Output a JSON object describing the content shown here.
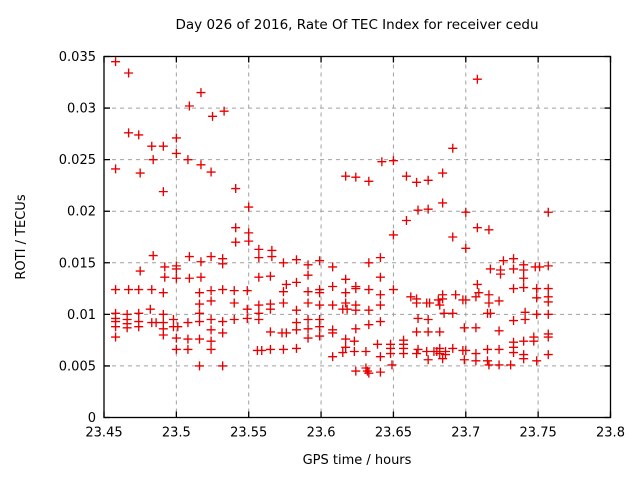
{
  "colors": {
    "marker": "#e80000",
    "grid": "#a0a0a0",
    "axis": "#000000",
    "background": "#ffffff"
  },
  "chart_data": {
    "type": "scatter",
    "title": "Day 026 of 2016, Rate Of TEC Index for receiver cedu",
    "xlabel": "GPS time / hours",
    "ylabel": "ROTI / TECUs",
    "xlim": [
      23.45,
      23.8
    ],
    "ylim": [
      0,
      0.035
    ],
    "xtick_values": [
      23.45,
      23.5,
      23.55,
      23.6,
      23.65,
      23.7,
      23.75,
      23.8
    ],
    "xtick_labels": [
      "23.45",
      "23.5",
      "23.55",
      "23.6",
      "23.65",
      "23.7",
      "23.75",
      "23.8"
    ],
    "ytick_values": [
      0,
      0.005,
      0.01,
      0.015,
      0.02,
      0.025,
      0.03,
      0.035
    ],
    "ytick_labels": [
      "0",
      "0.005",
      "0.01",
      "0.015",
      "0.02",
      "0.025",
      "0.03",
      "0.035"
    ],
    "grid": true,
    "legend": "none",
    "marker": {
      "shape": "plus",
      "color": "#e80000",
      "size": 9
    },
    "series": [
      {
        "name": "ROTI",
        "color": "#e80000",
        "points": [
          [
            23.458,
            0.0345
          ],
          [
            23.467,
            0.0334
          ],
          [
            23.517,
            0.0315
          ],
          [
            23.509,
            0.0302
          ],
          [
            23.525,
            0.0292
          ],
          [
            23.533,
            0.0297
          ],
          [
            23.467,
            0.0276
          ],
          [
            23.474,
            0.0274
          ],
          [
            23.483,
            0.0263
          ],
          [
            23.491,
            0.0263
          ],
          [
            23.5,
            0.0271
          ],
          [
            23.5,
            0.0256
          ],
          [
            23.484,
            0.025
          ],
          [
            23.508,
            0.025
          ],
          [
            23.517,
            0.0245
          ],
          [
            23.642,
            0.0248
          ],
          [
            23.65,
            0.0249
          ],
          [
            23.708,
            0.0328
          ],
          [
            23.691,
            0.0261
          ],
          [
            23.458,
            0.0241
          ],
          [
            23.475,
            0.0237
          ],
          [
            23.524,
            0.0238
          ],
          [
            23.491,
            0.0219
          ],
          [
            23.541,
            0.0222
          ],
          [
            23.55,
            0.0204
          ],
          [
            23.541,
            0.0184
          ],
          [
            23.55,
            0.0179
          ],
          [
            23.541,
            0.017
          ],
          [
            23.55,
            0.0171
          ],
          [
            23.557,
            0.0163
          ],
          [
            23.557,
            0.0155
          ],
          [
            23.566,
            0.0162
          ],
          [
            23.566,
            0.0156
          ],
          [
            23.484,
            0.0157
          ],
          [
            23.509,
            0.0156
          ],
          [
            23.524,
            0.0156
          ],
          [
            23.532,
            0.0154
          ],
          [
            23.532,
            0.0149
          ],
          [
            23.517,
            0.0151
          ],
          [
            23.5,
            0.0147
          ],
          [
            23.5,
            0.0144
          ],
          [
            23.492,
            0.0146
          ],
          [
            23.475,
            0.0142
          ],
          [
            23.492,
            0.0136
          ],
          [
            23.5,
            0.0135
          ],
          [
            23.509,
            0.0135
          ],
          [
            23.517,
            0.0136
          ],
          [
            23.557,
            0.0136
          ],
          [
            23.565,
            0.0137
          ],
          [
            23.458,
            0.0124
          ],
          [
            23.467,
            0.0124
          ],
          [
            23.474,
            0.0124
          ],
          [
            23.483,
            0.0124
          ],
          [
            23.491,
            0.0121
          ],
          [
            23.516,
            0.0121
          ],
          [
            23.524,
            0.0123
          ],
          [
            23.532,
            0.0124
          ],
          [
            23.54,
            0.0123
          ],
          [
            23.549,
            0.0123
          ],
          [
            23.557,
            0.0109
          ],
          [
            23.565,
            0.011
          ],
          [
            23.524,
            0.0113
          ],
          [
            23.458,
            0.0101
          ],
          [
            23.458,
            0.0096
          ],
          [
            23.458,
            0.0093
          ],
          [
            23.458,
            0.0088
          ],
          [
            23.458,
            0.0078
          ],
          [
            23.466,
            0.01
          ],
          [
            23.466,
            0.0095
          ],
          [
            23.466,
            0.0091
          ],
          [
            23.466,
            0.0087
          ],
          [
            23.474,
            0.0101
          ],
          [
            23.474,
            0.0093
          ],
          [
            23.474,
            0.0088
          ],
          [
            23.482,
            0.0105
          ],
          [
            23.483,
            0.0092
          ],
          [
            23.486,
            0.0092
          ],
          [
            23.491,
            0.01
          ],
          [
            23.491,
            0.0092
          ],
          [
            23.491,
            0.0086
          ],
          [
            23.491,
            0.008
          ],
          [
            23.498,
            0.0095
          ],
          [
            23.498,
            0.0088
          ],
          [
            23.501,
            0.0088
          ],
          [
            23.5,
            0.0077
          ],
          [
            23.5,
            0.0066
          ],
          [
            23.508,
            0.0092
          ],
          [
            23.508,
            0.0076
          ],
          [
            23.508,
            0.0066
          ],
          [
            23.516,
            0.011
          ],
          [
            23.516,
            0.0101
          ],
          [
            23.516,
            0.0093
          ],
          [
            23.516,
            0.0076
          ],
          [
            23.516,
            0.005
          ],
          [
            23.524,
            0.0095
          ],
          [
            23.524,
            0.0085
          ],
          [
            23.524,
            0.0074
          ],
          [
            23.524,
            0.0066
          ],
          [
            23.532,
            0.0093
          ],
          [
            23.532,
            0.0082
          ],
          [
            23.532,
            0.005
          ],
          [
            23.54,
            0.0111
          ],
          [
            23.54,
            0.0095
          ],
          [
            23.549,
            0.0105
          ],
          [
            23.549,
            0.0096
          ],
          [
            23.557,
            0.0101
          ],
          [
            23.557,
            0.0095
          ],
          [
            23.565,
            0.0105
          ],
          [
            23.565,
            0.0083
          ],
          [
            23.556,
            0.0065
          ],
          [
            23.559,
            0.0065
          ],
          [
            23.565,
            0.0066
          ],
          [
            23.617,
            0.0234
          ],
          [
            23.624,
            0.0233
          ],
          [
            23.633,
            0.0229
          ],
          [
            23.659,
            0.0234
          ],
          [
            23.666,
            0.0228
          ],
          [
            23.674,
            0.023
          ],
          [
            23.684,
            0.0237
          ],
          [
            23.684,
            0.0208
          ],
          [
            23.667,
            0.0201
          ],
          [
            23.674,
            0.0202
          ],
          [
            23.659,
            0.0191
          ],
          [
            23.65,
            0.0177
          ],
          [
            23.574,
            0.015
          ],
          [
            23.583,
            0.0153
          ],
          [
            23.591,
            0.0148
          ],
          [
            23.599,
            0.0152
          ],
          [
            23.608,
            0.0146
          ],
          [
            23.641,
            0.0155
          ],
          [
            23.633,
            0.015
          ],
          [
            23.591,
            0.0138
          ],
          [
            23.576,
            0.0129
          ],
          [
            23.583,
            0.0131
          ],
          [
            23.617,
            0.0134
          ],
          [
            23.624,
            0.0127
          ],
          [
            23.641,
            0.0136
          ],
          [
            23.608,
            0.0127
          ],
          [
            23.574,
            0.0122
          ],
          [
            23.591,
            0.0122
          ],
          [
            23.599,
            0.0124
          ],
          [
            23.599,
            0.0121
          ],
          [
            23.617,
            0.0121
          ],
          [
            23.624,
            0.0125
          ],
          [
            23.633,
            0.0124
          ],
          [
            23.641,
            0.0119
          ],
          [
            23.65,
            0.0124
          ],
          [
            23.662,
            0.0117
          ],
          [
            23.574,
            0.0111
          ],
          [
            23.583,
            0.0104
          ],
          [
            23.591,
            0.0111
          ],
          [
            23.591,
            0.0095
          ],
          [
            23.599,
            0.0109
          ],
          [
            23.599,
            0.0095
          ],
          [
            23.599,
            0.0088
          ],
          [
            23.608,
            0.0109
          ],
          [
            23.608,
            0.0085
          ],
          [
            23.608,
            0.0082
          ],
          [
            23.617,
            0.0111
          ],
          [
            23.615,
            0.0105
          ],
          [
            23.618,
            0.0105
          ],
          [
            23.624,
            0.0109
          ],
          [
            23.624,
            0.0104
          ],
          [
            23.633,
            0.0104
          ],
          [
            23.641,
            0.0109
          ],
          [
            23.641,
            0.0093
          ],
          [
            23.583,
            0.0092
          ],
          [
            23.583,
            0.0085
          ],
          [
            23.591,
            0.0086
          ],
          [
            23.591,
            0.0077
          ],
          [
            23.599,
            0.0079
          ],
          [
            23.573,
            0.0082
          ],
          [
            23.576,
            0.0082
          ],
          [
            23.583,
            0.0067
          ],
          [
            23.574,
            0.0066
          ],
          [
            23.608,
            0.0059
          ],
          [
            23.617,
            0.0076
          ],
          [
            23.617,
            0.0068
          ],
          [
            23.623,
            0.0074
          ],
          [
            23.623,
            0.0064
          ],
          [
            23.624,
            0.0086
          ],
          [
            23.631,
            0.0064
          ],
          [
            23.633,
            0.009
          ],
          [
            23.639,
            0.0071
          ],
          [
            23.641,
            0.0059
          ],
          [
            23.648,
            0.0071
          ],
          [
            23.648,
            0.0067
          ],
          [
            23.648,
            0.0062
          ],
          [
            23.649,
            0.0051
          ],
          [
            23.657,
            0.0075
          ],
          [
            23.657,
            0.0071
          ],
          [
            23.657,
            0.0067
          ],
          [
            23.657,
            0.0062
          ],
          [
            23.666,
            0.0115
          ],
          [
            23.666,
            0.0111
          ],
          [
            23.667,
            0.0096
          ],
          [
            23.666,
            0.0083
          ],
          [
            23.667,
            0.0066
          ],
          [
            23.666,
            0.0062
          ],
          [
            23.673,
            0.0111
          ],
          [
            23.675,
            0.0111
          ],
          [
            23.674,
            0.0095
          ],
          [
            23.674,
            0.0083
          ],
          [
            23.674,
            0.0056
          ],
          [
            23.673,
            0.0064
          ],
          [
            23.678,
            0.0064
          ],
          [
            23.68,
            0.0064
          ],
          [
            23.681,
            0.0114
          ],
          [
            23.684,
            0.0115
          ],
          [
            23.682,
            0.0109
          ],
          [
            23.682,
            0.0083
          ],
          [
            23.682,
            0.0067
          ],
          [
            23.682,
            0.0062
          ],
          [
            23.684,
            0.0057
          ],
          [
            23.686,
            0.0064
          ],
          [
            23.686,
            0.0061
          ],
          [
            23.624,
            0.0045
          ],
          [
            23.631,
            0.0048
          ],
          [
            23.632,
            0.0045
          ],
          [
            23.633,
            0.0043
          ],
          [
            23.641,
            0.0044
          ],
          [
            23.615,
            0.0063
          ],
          [
            23.7,
            0.0199
          ],
          [
            23.708,
            0.0184
          ],
          [
            23.716,
            0.0182
          ],
          [
            23.691,
            0.0175
          ],
          [
            23.7,
            0.0164
          ],
          [
            23.757,
            0.0199
          ],
          [
            23.726,
            0.0152
          ],
          [
            23.733,
            0.0154
          ],
          [
            23.717,
            0.0144
          ],
          [
            23.724,
            0.0143
          ],
          [
            23.724,
            0.0139
          ],
          [
            23.733,
            0.0144
          ],
          [
            23.74,
            0.0148
          ],
          [
            23.74,
            0.0143
          ],
          [
            23.74,
            0.0135
          ],
          [
            23.748,
            0.0146
          ],
          [
            23.751,
            0.0146
          ],
          [
            23.757,
            0.0147
          ],
          [
            23.708,
            0.0129
          ],
          [
            23.733,
            0.0125
          ],
          [
            23.74,
            0.0126
          ],
          [
            23.749,
            0.0125
          ],
          [
            23.757,
            0.0125
          ],
          [
            23.684,
            0.0119
          ],
          [
            23.685,
            0.0101
          ],
          [
            23.691,
            0.0101
          ],
          [
            23.693,
            0.0119
          ],
          [
            23.698,
            0.0114
          ],
          [
            23.7,
            0.0114
          ],
          [
            23.707,
            0.0117
          ],
          [
            23.709,
            0.0121
          ],
          [
            23.716,
            0.0119
          ],
          [
            23.716,
            0.0111
          ],
          [
            23.723,
            0.0113
          ],
          [
            23.749,
            0.0116
          ],
          [
            23.715,
            0.0101
          ],
          [
            23.717,
            0.0101
          ],
          [
            23.741,
            0.0102
          ],
          [
            23.741,
            0.0095
          ],
          [
            23.749,
            0.01
          ],
          [
            23.733,
            0.0094
          ],
          [
            23.699,
            0.0087
          ],
          [
            23.707,
            0.0087
          ],
          [
            23.723,
            0.0084
          ],
          [
            23.747,
            0.0078
          ],
          [
            23.747,
            0.0074
          ],
          [
            23.733,
            0.0073
          ],
          [
            23.733,
            0.0068
          ],
          [
            23.733,
            0.0063
          ],
          [
            23.74,
            0.0074
          ],
          [
            23.74,
            0.0061
          ],
          [
            23.691,
            0.0067
          ],
          [
            23.698,
            0.0065
          ],
          [
            23.7,
            0.0065
          ],
          [
            23.699,
            0.0056
          ],
          [
            23.707,
            0.0062
          ],
          [
            23.707,
            0.0055
          ],
          [
            23.715,
            0.0066
          ],
          [
            23.715,
            0.0055
          ],
          [
            23.723,
            0.0066
          ],
          [
            23.723,
            0.0051
          ],
          [
            23.716,
            0.0051
          ],
          [
            23.731,
            0.0051
          ],
          [
            23.74,
            0.0057
          ],
          [
            23.749,
            0.0055
          ],
          [
            23.757,
            0.0117
          ],
          [
            23.757,
            0.0112
          ],
          [
            23.757,
            0.01
          ],
          [
            23.757,
            0.0081
          ],
          [
            23.757,
            0.0078
          ],
          [
            23.757,
            0.0061
          ]
        ]
      }
    ]
  }
}
